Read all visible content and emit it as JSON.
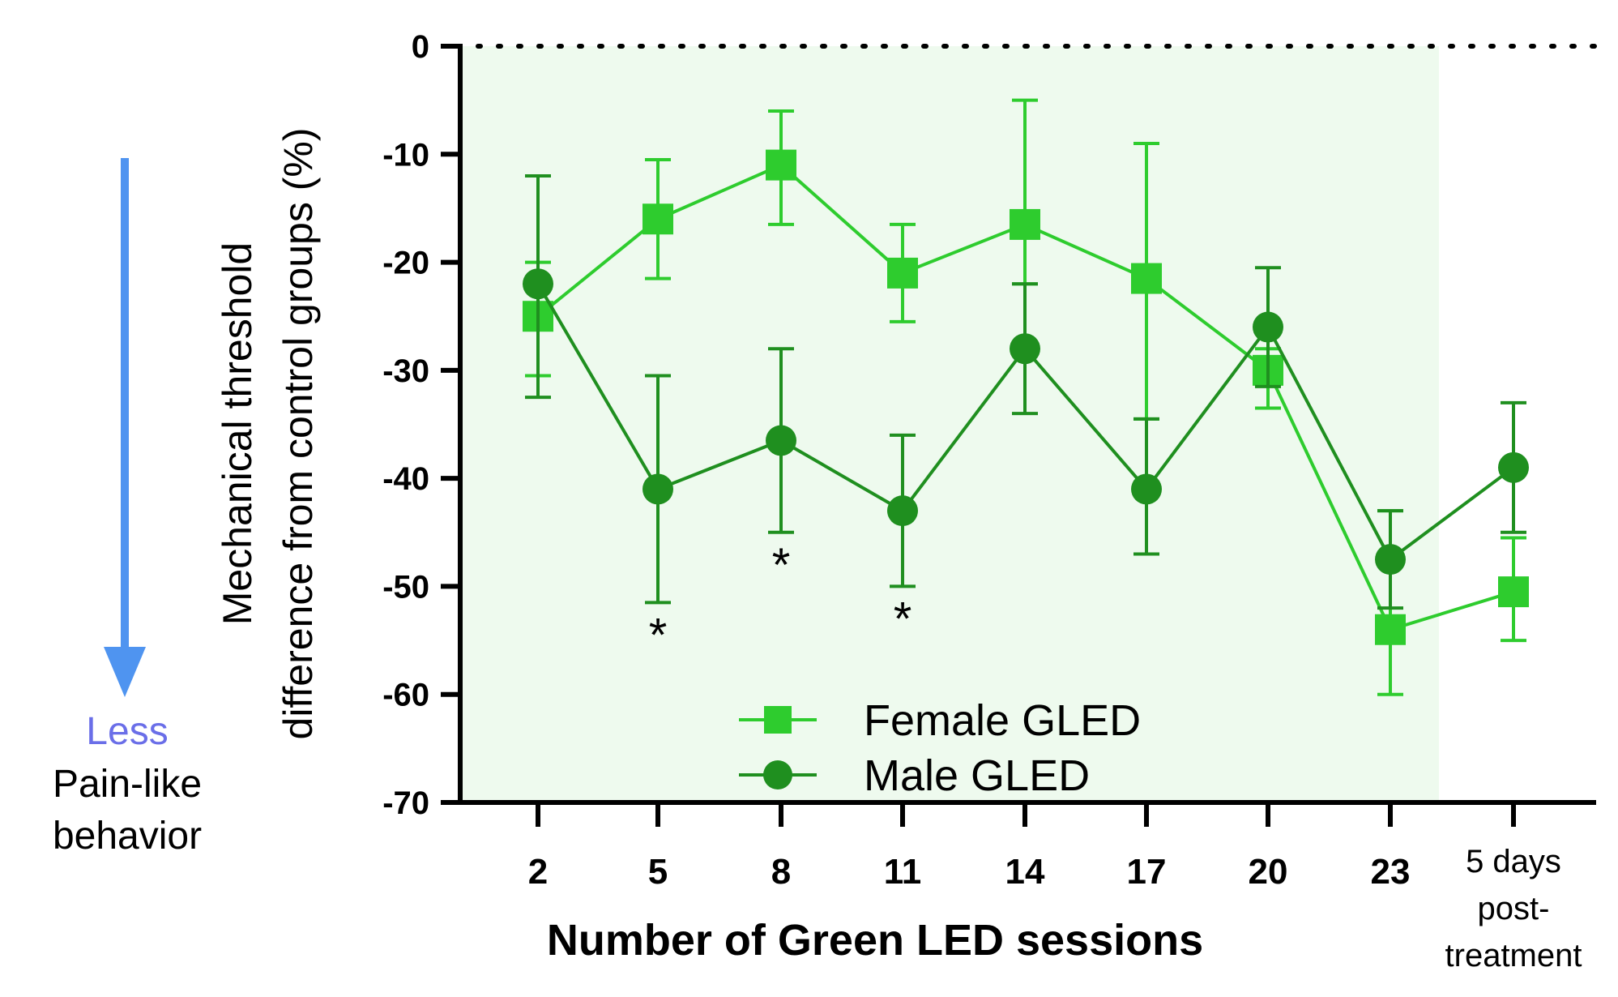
{
  "chart_data": {
    "type": "line",
    "xlabel": "Number of Green LED sessions",
    "ylabel_lines": [
      "Mechanical threshold",
      "difference from control groups (%)"
    ],
    "ylim": [
      -70,
      0
    ],
    "yticks": [
      0,
      -10,
      -20,
      -30,
      -40,
      -50,
      -60,
      -70
    ],
    "categories": [
      "2",
      "5",
      "8",
      "11",
      "14",
      "17",
      "20",
      "23",
      "5 days post-treatment"
    ],
    "last_category_lines": [
      "5 days",
      "post-",
      "treatment"
    ],
    "treatment_region": "sessions 2 to 23 (shaded light green)",
    "reference_line": 0,
    "series": [
      {
        "name": "Female GLED",
        "marker": "square",
        "color": "#2ecc2e",
        "values": [
          -25,
          -16,
          -11,
          -21,
          -16.5,
          -21.5,
          -30,
          -54,
          -50.5
        ],
        "err_upper": [
          5,
          5.5,
          5,
          4.5,
          11.5,
          12.5,
          2,
          11,
          5
        ],
        "err_lower": [
          5.5,
          5.5,
          5.5,
          4.5,
          5.5,
          13,
          3.5,
          6,
          4.5
        ]
      },
      {
        "name": "Male GLED",
        "marker": "circle",
        "color": "#1f8f1f",
        "values": [
          -22,
          -41,
          -36.5,
          -43,
          -28,
          -41,
          -26,
          -47.5,
          -39
        ],
        "err_upper": [
          10,
          10.5,
          8.5,
          7,
          6,
          6.5,
          5.5,
          4.5,
          6
        ],
        "err_lower": [
          10.5,
          10.5,
          8.5,
          7,
          6,
          6,
          5.5,
          4.5,
          6
        ]
      }
    ],
    "significance_markers": [
      {
        "category": "5",
        "label": "*",
        "series": "Male GLED"
      },
      {
        "category": "8",
        "label": "*",
        "series": "Male GLED"
      },
      {
        "category": "11",
        "label": "*",
        "series": "Male GLED"
      }
    ],
    "legend": {
      "position": "bottom-center",
      "entries": [
        "Female GLED",
        "Male GLED"
      ]
    }
  },
  "side_annotation": {
    "direction": "down",
    "arrow_color": "#4f94f0",
    "word": "Less",
    "word_color": "#6a6ee8",
    "lines": [
      "Pain-like",
      "behavior"
    ]
  }
}
